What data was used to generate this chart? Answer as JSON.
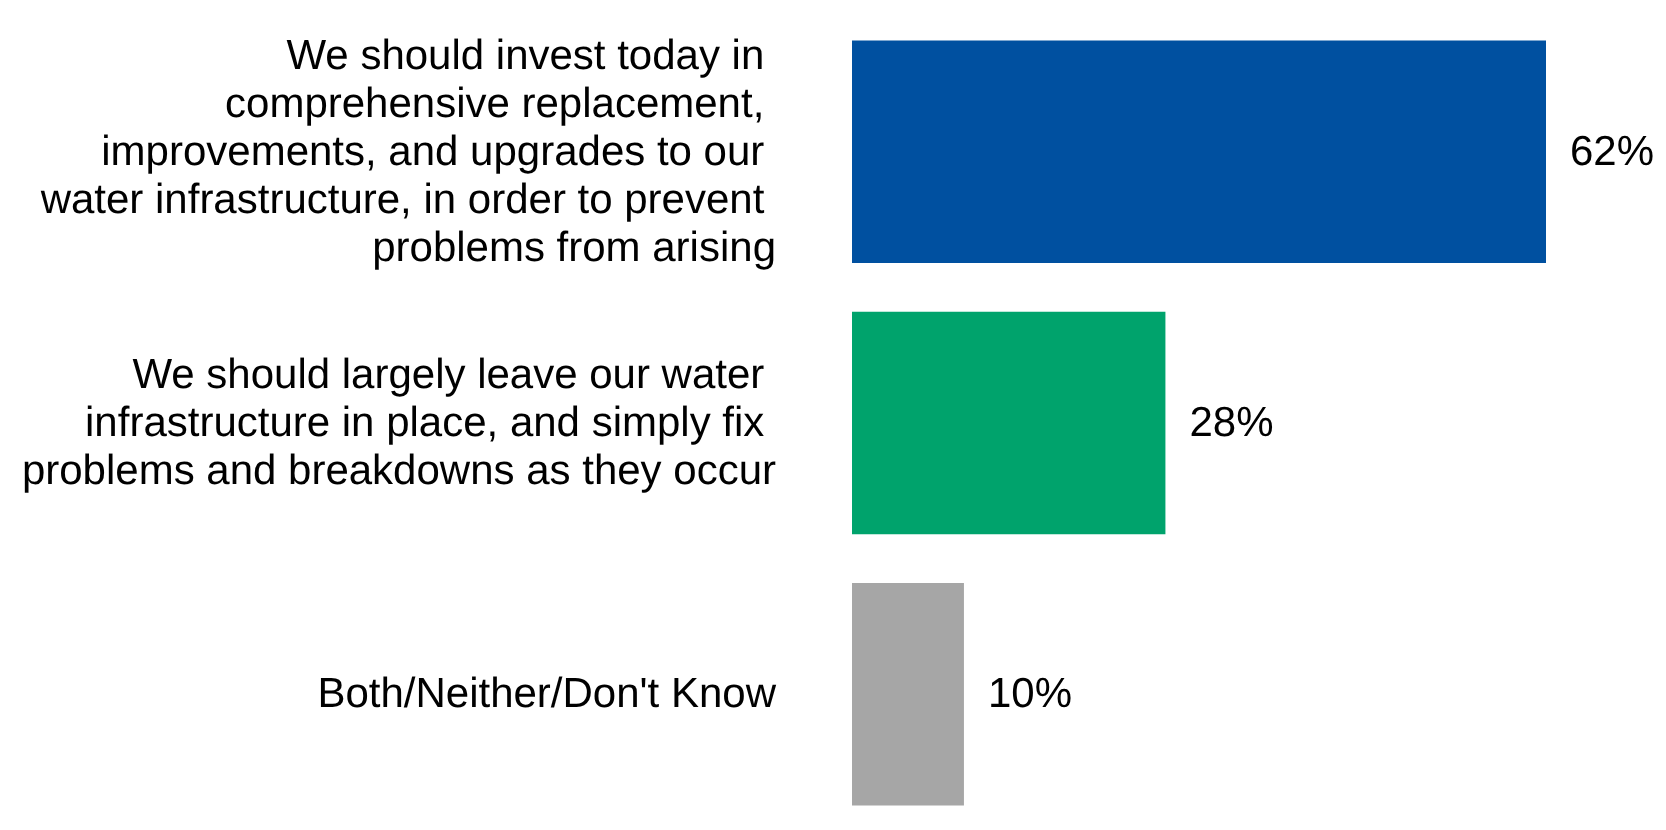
{
  "chart_data": {
    "type": "bar",
    "orientation": "horizontal",
    "categories": [
      "We should invest today in comprehensive replacement, improvements, and upgrades to our water infrastructure, in order to prevent problems from arising",
      "We should largely leave our water infrastructure in place, and simply fix problems and breakdowns as they occur",
      "Both/Neither/Don't Know"
    ],
    "values": [
      62,
      28,
      10
    ],
    "colors": [
      "#0050a0",
      "#00a36c",
      "#a6a6a6"
    ],
    "value_labels": [
      "62%",
      "28%",
      "10%"
    ]
  }
}
